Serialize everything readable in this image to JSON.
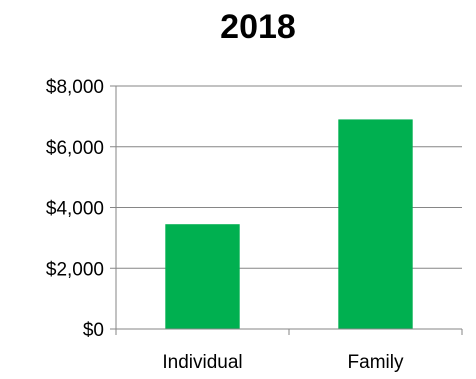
{
  "chart_data": {
    "type": "bar",
    "title": "2018",
    "xlabel": "",
    "ylabel": "",
    "categories": [
      "Individual",
      "Family"
    ],
    "values": [
      3450,
      6900
    ],
    "ylim": [
      0,
      8000
    ],
    "y_ticks": [
      0,
      2000,
      4000,
      6000,
      8000
    ],
    "y_tick_labels": [
      "$0",
      "$2,000",
      "$4,000",
      "$6,000",
      "$8,000"
    ],
    "grid": true,
    "legend": "none",
    "colors": {
      "bar": "#00b050",
      "grid": "#868686",
      "axis": "#868686"
    }
  }
}
